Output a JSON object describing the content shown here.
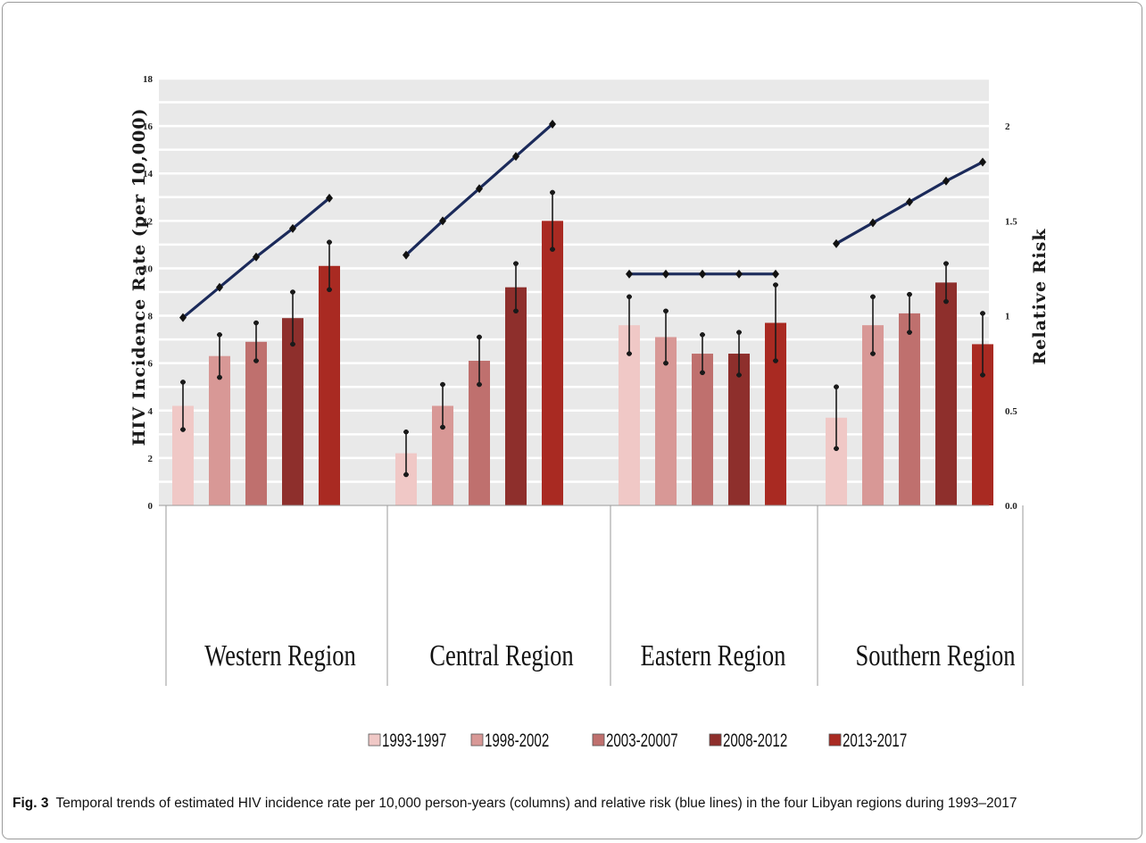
{
  "chart_data": {
    "type": "bar",
    "categories": [
      "Western Region",
      "Central Region",
      "Eastern Region",
      "Southern Region"
    ],
    "series": [
      {
        "name": "1993-1997",
        "values": [
          4.2,
          2.2,
          7.6,
          3.7
        ],
        "errors": [
          1.0,
          0.9,
          1.2,
          1.3
        ],
        "color": "#f0c8c6"
      },
      {
        "name": "1998-2002",
        "values": [
          6.3,
          4.2,
          7.1,
          7.6
        ],
        "errors": [
          0.9,
          0.9,
          1.1,
          1.2
        ],
        "color": "#d89896"
      },
      {
        "name": "2003-20007",
        "values": [
          6.9,
          6.1,
          6.4,
          8.1
        ],
        "errors": [
          0.8,
          1.0,
          0.8,
          0.8
        ],
        "color": "#bf706e"
      },
      {
        "name": "2008-2012",
        "values": [
          7.9,
          9.2,
          6.4,
          9.4
        ],
        "errors": [
          1.1,
          1.0,
          0.9,
          0.8
        ],
        "color": "#8e2f2c"
      },
      {
        "name": "2013-2017",
        "values": [
          10.1,
          12.0,
          7.7,
          6.8
        ],
        "errors": [
          1.0,
          1.2,
          1.6,
          1.3
        ],
        "color": "#a92a22"
      }
    ],
    "relative_risk": [
      [
        0.99,
        1.15,
        1.31,
        1.46,
        1.62
      ],
      [
        1.32,
        1.5,
        1.67,
        1.84,
        2.01
      ],
      [
        1.22,
        1.22,
        1.22,
        1.22,
        1.22
      ],
      [
        1.38,
        1.49,
        1.6,
        1.71,
        1.81
      ]
    ],
    "relative_risk_color": "#1b2a5a",
    "ylabel": "HIV Incidence Rate (per 10,000)",
    "ylim": [
      0,
      18
    ],
    "yticks": [
      "0",
      "2",
      "4",
      "6",
      "8",
      "10",
      "12",
      "14",
      "16",
      "18"
    ],
    "y2label": "Relative Risk",
    "y2lim": [
      0,
      2.25
    ],
    "y2ticks": [
      {
        "value": 0,
        "label": "0.0"
      },
      {
        "value": 0.5,
        "label": "0.5"
      },
      {
        "value": 1,
        "label": "1"
      },
      {
        "value": 1.5,
        "label": "1.5"
      },
      {
        "value": 2,
        "label": "2"
      }
    ],
    "legend_position": "bottom",
    "grid": true
  },
  "caption": {
    "label": "Fig. 3",
    "text": "Temporal trends of estimated HIV incidence rate per 10,000 person-years (columns) and relative risk (blue lines) in the four Libyan regions during 1993–2017"
  }
}
